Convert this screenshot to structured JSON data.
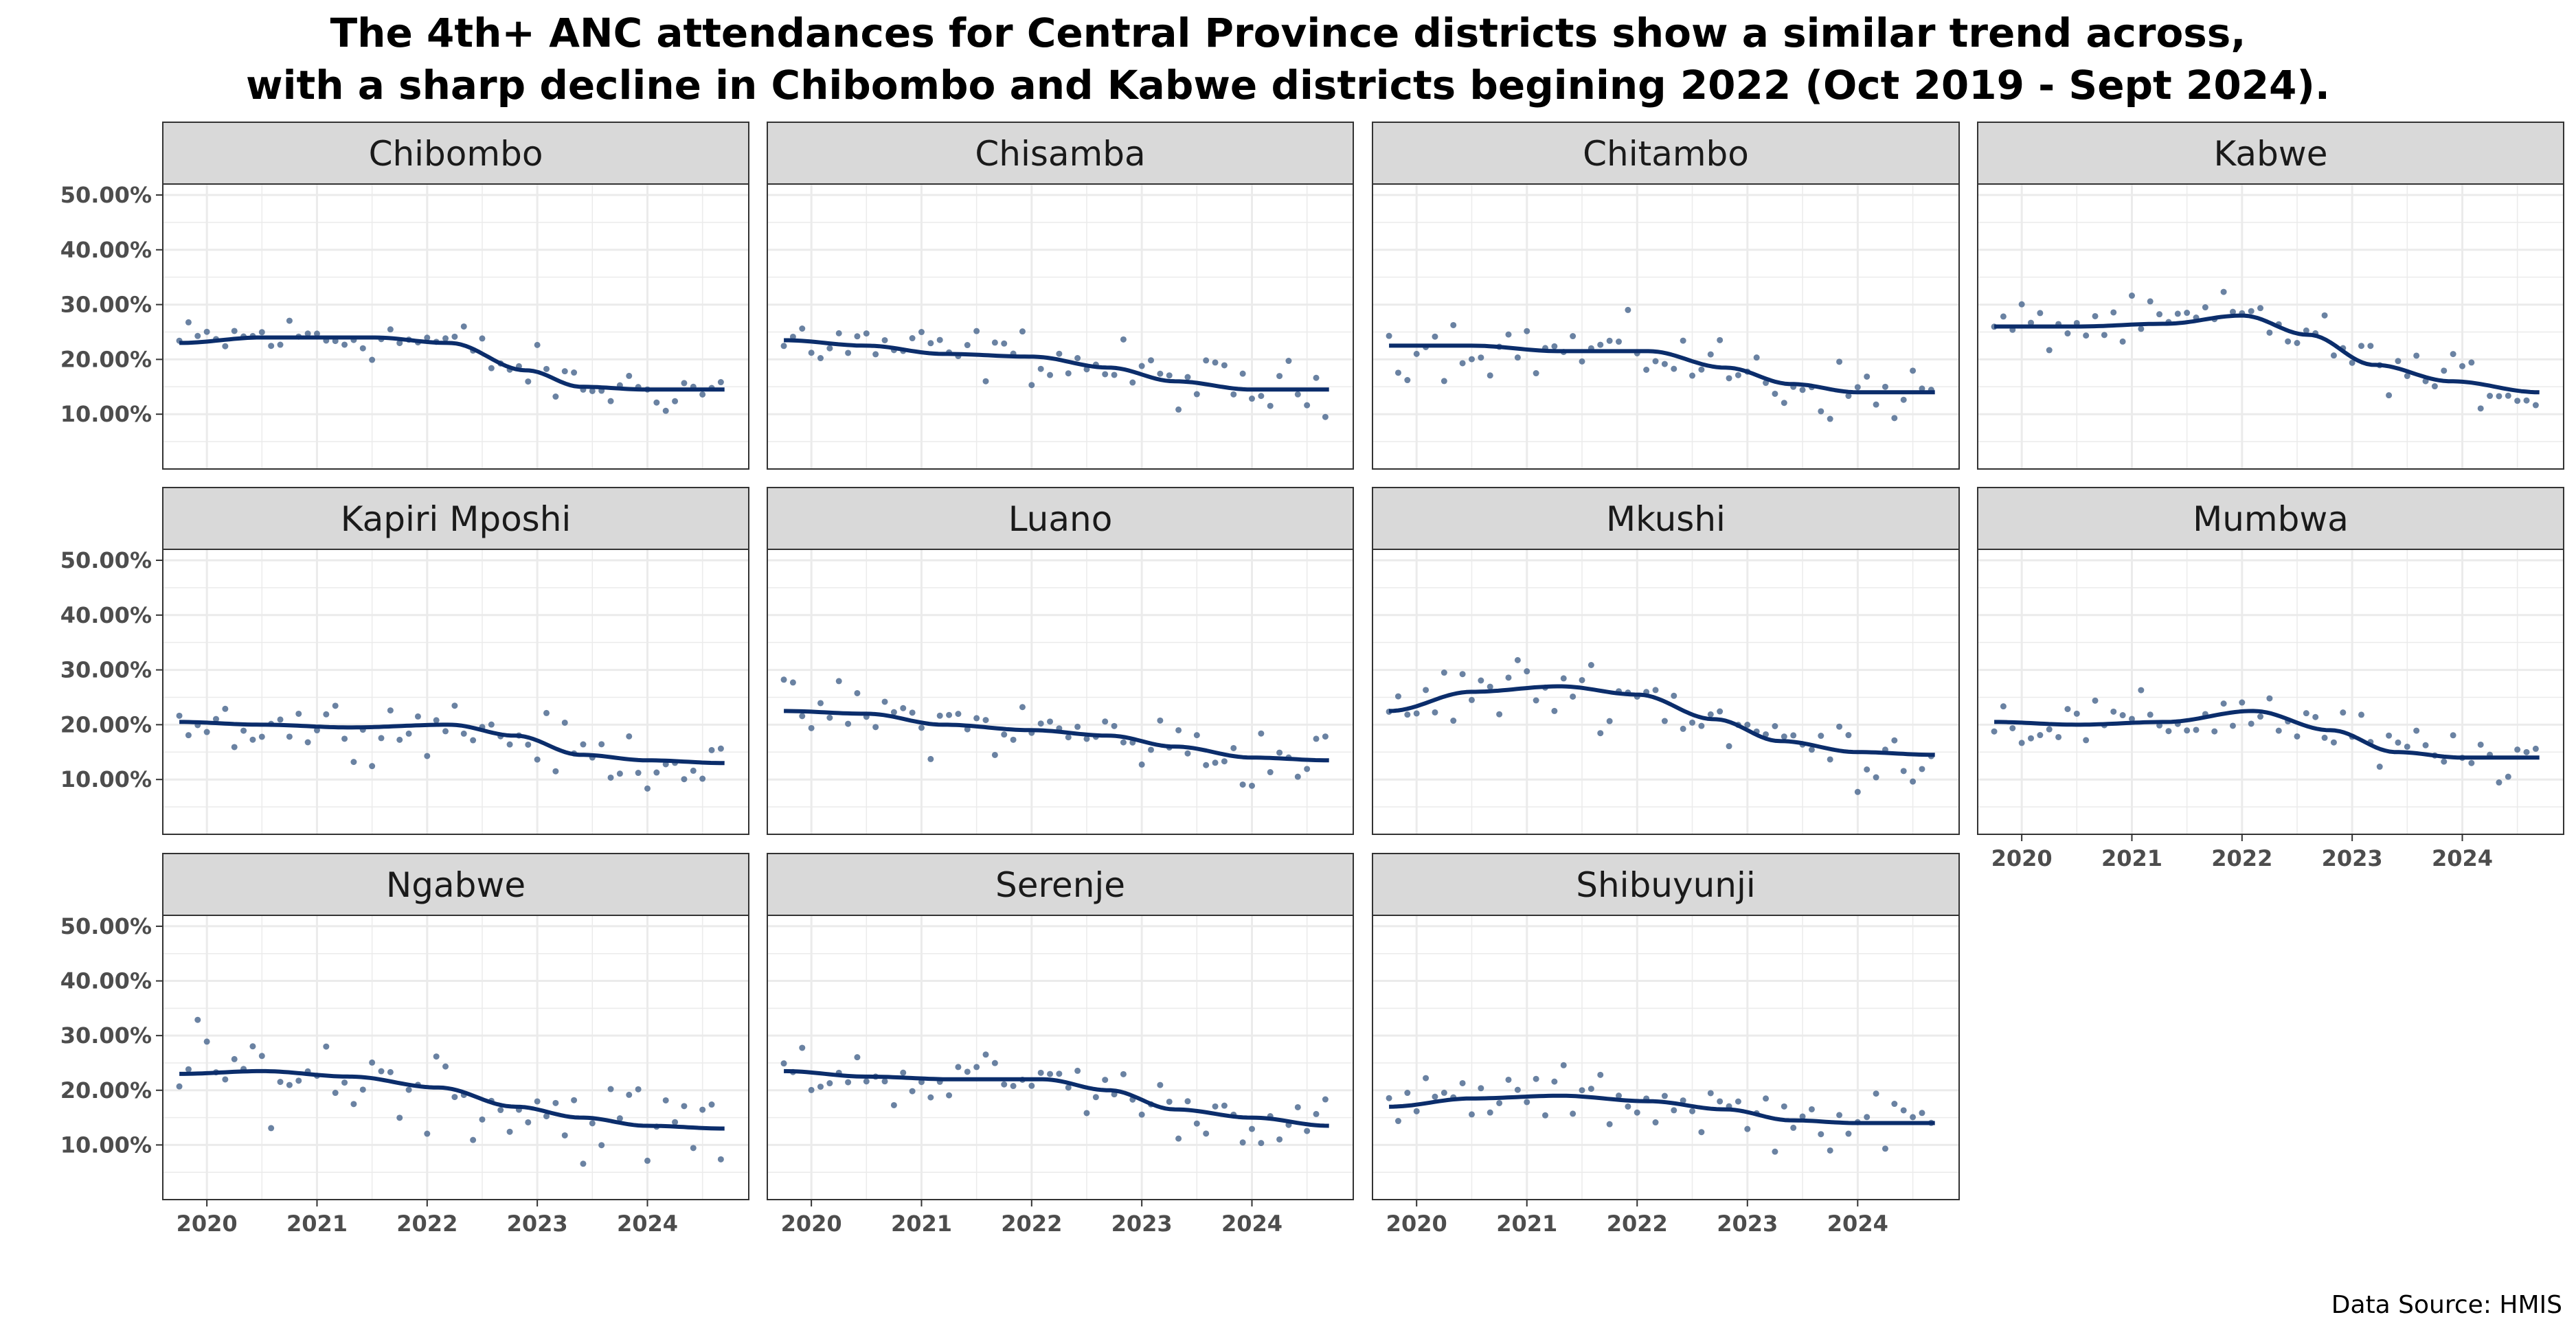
{
  "title": {
    "line1": "The 4th+ ANC attendances for Central Province districts show a similar trend across,",
    "line2": "with a sharp decline in Chibombo and Kabwe districts begining 2022 (Oct 2019 - Sept 2024)."
  },
  "caption": "Data Source: HMIS",
  "colors": {
    "trend_line": "#0b2d6b",
    "points": "#5a7498",
    "strip_fill": "#d9d9d9",
    "grid": "#ebebeb",
    "panel_border": "#333333"
  },
  "chart_data": {
    "type": "scatter",
    "facets": true,
    "y_axis": {
      "ticks": [
        0.1,
        0.2,
        0.3,
        0.4,
        0.5
      ],
      "tick_labels": [
        "10.00%",
        "20.00%",
        "30.00%",
        "40.00%",
        "50.00%"
      ],
      "ylim": [
        0.0,
        0.52
      ]
    },
    "x_axis": {
      "ticks": [
        2020,
        2021,
        2022,
        2023,
        2024
      ],
      "tick_labels": [
        "2020",
        "2021",
        "2022",
        "2023",
        "2024"
      ],
      "xlim": [
        2019.6,
        2024.92
      ]
    },
    "grid": true,
    "smooth_line": true,
    "panels": [
      {
        "name": "Chibombo",
        "trend_x": [
          2019.75,
          2020.5,
          2021.5,
          2022.2,
          2022.9,
          2023.4,
          2024.0,
          2024.7
        ],
        "trend_y": [
          0.23,
          0.24,
          0.24,
          0.23,
          0.18,
          0.15,
          0.145,
          0.145
        ],
        "spread": 0.022
      },
      {
        "name": "Chisamba",
        "trend_x": [
          2019.75,
          2020.5,
          2021.2,
          2022.0,
          2022.7,
          2023.3,
          2024.0,
          2024.7
        ],
        "trend_y": [
          0.235,
          0.225,
          0.21,
          0.205,
          0.185,
          0.16,
          0.145,
          0.145
        ],
        "spread": 0.025
      },
      {
        "name": "Chitambo",
        "trend_x": [
          2019.75,
          2020.5,
          2021.3,
          2022.1,
          2022.8,
          2023.4,
          2024.0,
          2024.7
        ],
        "trend_y": [
          0.225,
          0.225,
          0.215,
          0.215,
          0.185,
          0.155,
          0.14,
          0.14
        ],
        "spread": 0.028
      },
      {
        "name": "Kabwe",
        "trend_x": [
          2019.75,
          2020.5,
          2021.3,
          2022.0,
          2022.6,
          2023.2,
          2023.9,
          2024.7
        ],
        "trend_y": [
          0.26,
          0.26,
          0.265,
          0.28,
          0.245,
          0.19,
          0.16,
          0.14
        ],
        "spread": 0.022
      },
      {
        "name": "Kapiri Mposhi",
        "trend_x": [
          2019.75,
          2020.5,
          2021.3,
          2022.2,
          2022.8,
          2023.4,
          2024.0,
          2024.7
        ],
        "trend_y": [
          0.205,
          0.2,
          0.195,
          0.2,
          0.18,
          0.145,
          0.135,
          0.13
        ],
        "spread": 0.025
      },
      {
        "name": "Luano",
        "trend_x": [
          2019.75,
          2020.5,
          2021.2,
          2022.0,
          2022.7,
          2023.3,
          2024.0,
          2024.7
        ],
        "trend_y": [
          0.225,
          0.22,
          0.2,
          0.19,
          0.18,
          0.16,
          0.14,
          0.135
        ],
        "spread": 0.028
      },
      {
        "name": "Mkushi",
        "trend_x": [
          2019.75,
          2020.5,
          2021.3,
          2022.0,
          2022.7,
          2023.3,
          2024.0,
          2024.7
        ],
        "trend_y": [
          0.225,
          0.26,
          0.27,
          0.255,
          0.21,
          0.17,
          0.15,
          0.145
        ],
        "spread": 0.03
      },
      {
        "name": "Mumbwa",
        "trend_x": [
          2019.75,
          2020.5,
          2021.3,
          2022.1,
          2022.8,
          2023.4,
          2024.0,
          2024.7
        ],
        "trend_y": [
          0.205,
          0.2,
          0.205,
          0.225,
          0.19,
          0.15,
          0.14,
          0.14
        ],
        "spread": 0.025
      },
      {
        "name": "Ngabwe",
        "trend_x": [
          2019.75,
          2020.5,
          2021.3,
          2022.1,
          2022.8,
          2023.4,
          2024.0,
          2024.7
        ],
        "trend_y": [
          0.23,
          0.235,
          0.225,
          0.205,
          0.17,
          0.15,
          0.135,
          0.13
        ],
        "spread": 0.04
      },
      {
        "name": "Serenje",
        "trend_x": [
          2019.75,
          2020.5,
          2021.3,
          2022.1,
          2022.7,
          2023.3,
          2024.0,
          2024.7
        ],
        "trend_y": [
          0.235,
          0.225,
          0.22,
          0.22,
          0.2,
          0.165,
          0.15,
          0.135
        ],
        "spread": 0.025
      },
      {
        "name": "Shibuyunji",
        "trend_x": [
          2019.75,
          2020.5,
          2021.3,
          2022.1,
          2022.8,
          2023.4,
          2024.0,
          2024.7
        ],
        "trend_y": [
          0.17,
          0.185,
          0.19,
          0.18,
          0.165,
          0.145,
          0.14,
          0.14
        ],
        "spread": 0.025
      }
    ]
  }
}
